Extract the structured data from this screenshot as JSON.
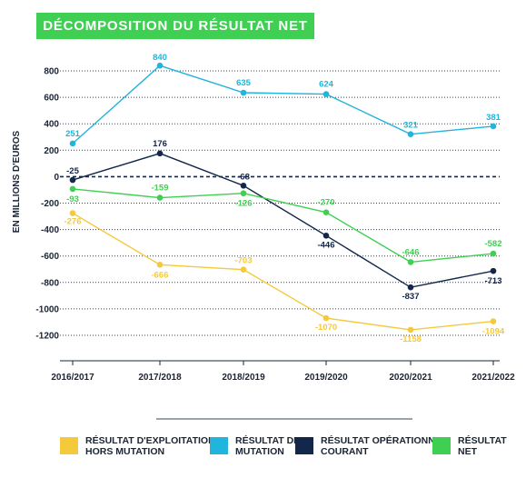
{
  "title": "DÉCOMPOSITION DU RÉSULTAT NET",
  "chart_data": {
    "type": "line",
    "title": "DÉCOMPOSITION DU RÉSULTAT NET",
    "ylabel": "EN MILLIONS D'EUROS",
    "xlabel": "",
    "categories": [
      "2016/2017",
      "2017/2018",
      "2018/2019",
      "2019/2020",
      "2020/2021",
      "2021/2022"
    ],
    "ylim": [
      -1200,
      800
    ],
    "yticks": [
      "800",
      "600",
      "400",
      "200",
      "0",
      "-200",
      "-400",
      "-600",
      "-800",
      "-1000",
      "-1200"
    ],
    "grid": "dotted horizontal",
    "zero_line": "dashed",
    "series": [
      {
        "name_lines": [
          "RÉSULTAT D'EXPLOITATION",
          "HORS MUTATION"
        ],
        "color": "#f5c93c",
        "values": [
          -276,
          -666,
          -703,
          -1070,
          -1158,
          -1094
        ],
        "labels": [
          "-276",
          "-666",
          "-703",
          "-1070",
          "-1158",
          "-1094"
        ]
      },
      {
        "name_lines": [
          "RÉSULTAT DE",
          "MUTATION"
        ],
        "color": "#21b4dc",
        "values": [
          251,
          840,
          635,
          624,
          321,
          381
        ],
        "labels": [
          "251",
          "840",
          "635",
          "624",
          "321",
          "381"
        ]
      },
      {
        "name_lines": [
          "RÉSULTAT OPÉRATIONNEL",
          "COURANT"
        ],
        "color": "#13274a",
        "values": [
          -25,
          176,
          -68,
          -446,
          -837,
          -713
        ],
        "labels": [
          "-25",
          "176",
          "-68",
          "-446",
          "-837",
          "-713"
        ]
      },
      {
        "name_lines": [
          "RÉSULTAT",
          "NET"
        ],
        "color": "#3fcf52",
        "values": [
          -93,
          -159,
          -126,
          -270,
          -646,
          -582
        ],
        "labels": [
          "-93",
          "-159",
          "-126",
          "-270",
          "-646",
          "-582"
        ]
      }
    ]
  }
}
